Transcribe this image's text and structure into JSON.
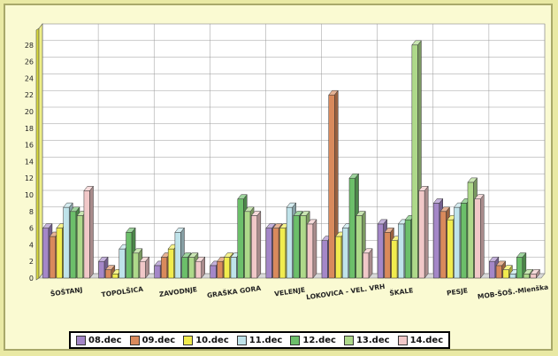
{
  "chart_data": {
    "type": "bar",
    "title": "",
    "xlabel": "",
    "ylabel": "",
    "ylim": [
      0,
      30
    ],
    "yticks": [
      0,
      2,
      4,
      6,
      8,
      10,
      12,
      14,
      16,
      18,
      20,
      22,
      24,
      26,
      28
    ],
    "grid": true,
    "legend_position": "bottom",
    "categories": [
      "ŠOŠTANJ",
      "TOPOLŠICA",
      "ZAVODNJE",
      "GRAŠKA GORA",
      "VELENJE",
      "LOKOVICA - VEL. VRH",
      "ŠKALE",
      "PESJE",
      "MOB-ŠOŠ.-Mlenška"
    ],
    "series": [
      {
        "name": "08.dec",
        "color": "#a487c8",
        "values": [
          6.0,
          2.0,
          1.5,
          1.5,
          6.0,
          4.5,
          6.5,
          9.0,
          2.0
        ]
      },
      {
        "name": "09.dec",
        "color": "#d98a5c",
        "values": [
          5.0,
          1.0,
          2.5,
          2.0,
          6.0,
          22.0,
          5.5,
          8.0,
          1.5
        ]
      },
      {
        "name": "10.dec",
        "color": "#f1ec4e",
        "values": [
          6.0,
          0.5,
          3.5,
          2.5,
          6.0,
          5.0,
          4.5,
          7.0,
          1.0
        ]
      },
      {
        "name": "11.dec",
        "color": "#bfe3ea",
        "values": [
          8.5,
          3.5,
          5.5,
          2.5,
          8.5,
          6.0,
          6.5,
          8.5,
          0.5
        ]
      },
      {
        "name": "12.dec",
        "color": "#6cbf6a",
        "values": [
          8.0,
          5.5,
          2.5,
          9.5,
          7.5,
          12.0,
          7.0,
          9.0,
          2.5
        ]
      },
      {
        "name": "13.dec",
        "color": "#aed98a",
        "values": [
          7.5,
          3.0,
          2.5,
          8.0,
          7.5,
          7.5,
          28.0,
          11.5,
          0.5
        ]
      },
      {
        "name": "14.dec",
        "color": "#f1c8c8",
        "values": [
          10.5,
          2.0,
          2.0,
          7.5,
          6.5,
          3.0,
          10.5,
          9.5,
          0.5
        ]
      }
    ]
  }
}
